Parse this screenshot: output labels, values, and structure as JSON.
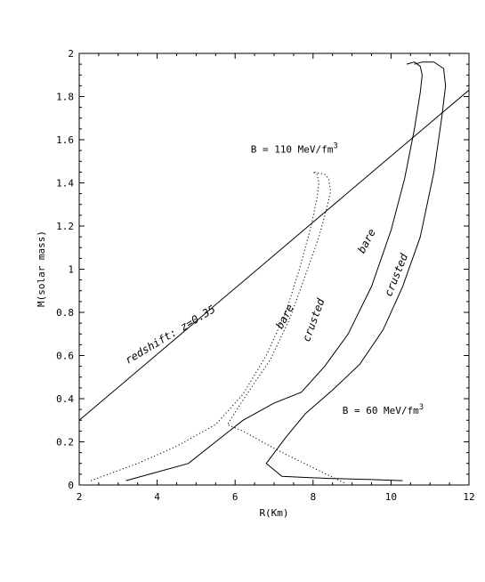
{
  "chart_data": {
    "type": "line",
    "title": "",
    "xlabel": "R(Km)",
    "ylabel": "M(solar mass)",
    "xlim": [
      2,
      12
    ],
    "ylim": [
      0,
      2
    ],
    "xticks": [
      2,
      4,
      6,
      8,
      10,
      12
    ],
    "xtick_labels": [
      "2",
      "4",
      "6",
      "8",
      "10",
      "12"
    ],
    "yticks": [
      0,
      0.2,
      0.4,
      0.6,
      0.8,
      1,
      1.2,
      1.4,
      1.6,
      1.8,
      2
    ],
    "ytick_labels": [
      "0",
      "0.2",
      "0.4",
      "0.6",
      "0.8",
      "1",
      "1.2",
      "1.4",
      "1.6",
      "1.8",
      "2"
    ],
    "grid": false,
    "series": [
      {
        "key": "b110_bare",
        "style": "dotted",
        "x": [
          2.3,
          3.5,
          4.5,
          5.5,
          6.2,
          6.8,
          7.3,
          7.65,
          7.95,
          8.1,
          8.15,
          8.1,
          8.0
        ],
        "y": [
          0.02,
          0.1,
          0.18,
          0.28,
          0.42,
          0.6,
          0.8,
          1.0,
          1.2,
          1.33,
          1.4,
          1.44,
          1.45
        ]
      },
      {
        "key": "b110_crusted",
        "style": "dotted",
        "x": [
          8.8,
          8.0,
          7.0,
          6.2,
          5.8,
          6.3,
          6.9,
          7.4,
          7.8,
          8.15,
          8.35,
          8.45,
          8.4,
          8.3,
          8.0
        ],
        "y": [
          0.01,
          0.08,
          0.17,
          0.25,
          0.28,
          0.42,
          0.58,
          0.77,
          0.97,
          1.15,
          1.28,
          1.36,
          1.42,
          1.44,
          1.45
        ]
      },
      {
        "key": "b60_bare",
        "style": "solid",
        "x": [
          3.2,
          3.8,
          4.8,
          5.5,
          6.2,
          7.0,
          7.7,
          8.3,
          8.9,
          9.5,
          10.0,
          10.35,
          10.6,
          10.75,
          10.8,
          10.75,
          10.6,
          10.4
        ],
        "y": [
          0.02,
          0.05,
          0.1,
          0.2,
          0.3,
          0.38,
          0.43,
          0.55,
          0.7,
          0.92,
          1.18,
          1.42,
          1.65,
          1.82,
          1.9,
          1.94,
          1.96,
          1.95
        ]
      },
      {
        "key": "b60_crusted",
        "style": "solid",
        "x": [
          10.3,
          9.5,
          8.5,
          7.8,
          7.2,
          6.8,
          7.3,
          7.8,
          8.5,
          9.2,
          9.8,
          10.3,
          10.75,
          11.1,
          11.3,
          11.4,
          11.35,
          11.1,
          10.8,
          10.6
        ],
        "y": [
          0.02,
          0.025,
          0.03,
          0.035,
          0.04,
          0.1,
          0.22,
          0.33,
          0.44,
          0.56,
          0.72,
          0.92,
          1.15,
          1.45,
          1.7,
          1.85,
          1.93,
          1.96,
          1.96,
          1.95
        ]
      },
      {
        "key": "redshift",
        "style": "solid",
        "x": [
          2,
          12
        ],
        "y": [
          0.3,
          1.83
        ]
      }
    ],
    "annotations": [
      {
        "key": "redshift",
        "text": "redshift: z=0.35",
        "x": 3.25,
        "y": 0.56,
        "angle": -31
      },
      {
        "key": "b110",
        "text": "B = 110 MeV/fm",
        "sup": "3",
        "x": 6.4,
        "y": 1.54,
        "angle": 0
      },
      {
        "key": "b60",
        "text": "B = 60 MeV/fm",
        "sup": "3",
        "x": 8.75,
        "y": 0.33,
        "angle": 0
      },
      {
        "key": "bare110",
        "text": "bare",
        "x": 7.2,
        "y": 0.72,
        "angle": -62
      },
      {
        "key": "crusted110",
        "text": "crusted",
        "x": 7.9,
        "y": 0.66,
        "angle": -70
      },
      {
        "key": "bare60",
        "text": "bare",
        "x": 9.3,
        "y": 1.07,
        "angle": -62
      },
      {
        "key": "crusted60",
        "text": "crusted",
        "x": 10.0,
        "y": 0.87,
        "angle": -68
      }
    ]
  }
}
